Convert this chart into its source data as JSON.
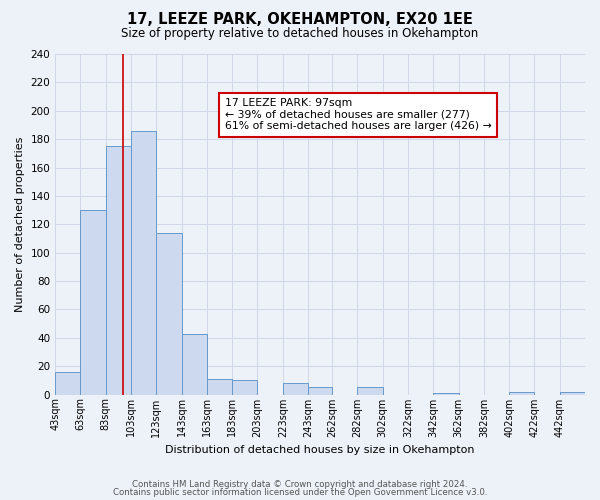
{
  "title": "17, LEEZE PARK, OKEHAMPTON, EX20 1EE",
  "subtitle": "Size of property relative to detached houses in Okehampton",
  "xlabel": "Distribution of detached houses by size in Okehampton",
  "ylabel": "Number of detached properties",
  "bar_values": [
    16,
    130,
    175,
    186,
    114,
    43,
    11,
    10,
    0,
    8,
    5,
    0,
    5,
    0,
    0,
    1,
    0,
    0,
    2,
    0,
    2
  ],
  "bin_edges": [
    43,
    63,
    83,
    103,
    123,
    143,
    163,
    183,
    203,
    223,
    243,
    262,
    282,
    302,
    322,
    342,
    362,
    382,
    402,
    422,
    442,
    462
  ],
  "tick_positions": [
    43,
    63,
    83,
    103,
    123,
    143,
    163,
    183,
    203,
    223,
    243,
    262,
    282,
    302,
    322,
    342,
    362,
    382,
    402,
    422,
    442
  ],
  "tick_labels": [
    "43sqm",
    "63sqm",
    "83sqm",
    "103sqm",
    "123sqm",
    "143sqm",
    "163sqm",
    "183sqm",
    "203sqm",
    "223sqm",
    "243sqm",
    "262sqm",
    "282sqm",
    "302sqm",
    "322sqm",
    "342sqm",
    "362sqm",
    "382sqm",
    "402sqm",
    "422sqm",
    "442sqm"
  ],
  "bar_color": "#ccd9ee",
  "bar_edge_color": "#6699cc",
  "grid_color": "#d0d8e8",
  "background_color": "#edf2f9",
  "vline_x": 97,
  "vline_color": "#cc0000",
  "ylim": [
    0,
    240
  ],
  "yticks": [
    0,
    20,
    40,
    60,
    80,
    100,
    120,
    140,
    160,
    180,
    200,
    220,
    240
  ],
  "annotation_title": "17 LEEZE PARK: 97sqm",
  "annotation_line1": "← 39% of detached houses are smaller (277)",
  "annotation_line2": "61% of semi-detached houses are larger (426) →",
  "footer1": "Contains HM Land Registry data © Crown copyright and database right 2024.",
  "footer2": "Contains public sector information licensed under the Open Government Licence v3.0."
}
